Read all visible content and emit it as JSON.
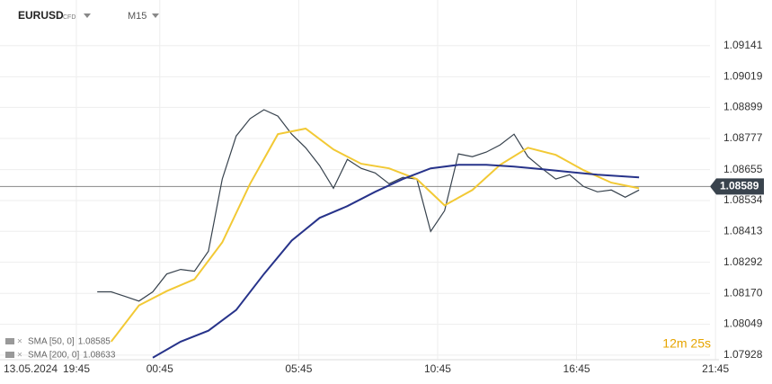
{
  "header": {
    "symbol": "EURUSD",
    "instrument_type": "CFD",
    "timeframe": "M15"
  },
  "chart_data": {
    "type": "line",
    "xlim": [
      -11,
      92.5
    ],
    "xticks": [
      {
        "value": 0,
        "label": "19:45"
      },
      {
        "value": 12,
        "label": "00:45"
      },
      {
        "value": 32,
        "label": "05:45"
      },
      {
        "value": 52,
        "label": "10:45"
      },
      {
        "value": 72,
        "label": "16:45"
      },
      {
        "value": 92,
        "label": "21:45"
      }
    ],
    "date_label": "13.05.2024",
    "ylim": [
      1.0791,
      1.0932
    ],
    "yticks": [
      {
        "value": 1.07928,
        "label": "1.07928"
      },
      {
        "value": 1.08049,
        "label": "1.08049"
      },
      {
        "value": 1.0817,
        "label": "1.08170"
      },
      {
        "value": 1.08292,
        "label": "1.08292"
      },
      {
        "value": 1.08413,
        "label": "1.08413"
      },
      {
        "value": 1.08534,
        "label": "1.08534"
      },
      {
        "value": 1.08655,
        "label": "1.08655"
      },
      {
        "value": 1.08777,
        "label": "1.08777"
      },
      {
        "value": 1.08899,
        "label": "1.08899"
      },
      {
        "value": 1.09019,
        "label": "1.09019"
      },
      {
        "value": 1.09141,
        "label": "1.09141"
      }
    ],
    "grid": true,
    "current_price": 1.08589,
    "countdown": "12m 25s",
    "series": [
      {
        "name": "EURUSD",
        "color": "#37424d",
        "x": [
          3,
          5,
          7,
          9,
          11,
          13,
          15,
          17,
          19,
          21,
          23,
          25,
          27,
          29,
          31,
          33,
          35,
          37,
          39,
          41,
          43,
          45,
          47,
          49,
          51,
          53,
          55,
          57,
          59,
          61,
          63,
          65,
          67,
          69,
          71,
          73,
          75,
          77,
          79,
          81
        ],
        "values": [
          1.08176,
          1.08176,
          1.08158,
          1.0814,
          1.08176,
          1.08246,
          1.08264,
          1.08257,
          1.08335,
          1.08618,
          1.08787,
          1.08855,
          1.0889,
          1.08865,
          1.08794,
          1.08741,
          1.08671,
          1.08582,
          1.08695,
          1.0866,
          1.08642,
          1.086,
          1.08625,
          1.08618,
          1.08413,
          1.08494,
          1.08717,
          1.08706,
          1.08724,
          1.08752,
          1.08794,
          1.08706,
          1.0866,
          1.08618,
          1.08635,
          1.08589,
          1.08568,
          1.08575,
          1.08547,
          1.08575
        ]
      },
      {
        "name": "SMA [50, 0]",
        "color": "#f2c935",
        "last_value": 1.08585,
        "x": [
          5,
          9,
          13,
          17,
          21,
          25,
          29,
          33,
          37,
          41,
          45,
          49,
          53,
          57,
          61,
          65,
          69,
          73,
          77,
          81
        ],
        "values": [
          1.07981,
          1.08123,
          1.08179,
          1.08225,
          1.0837,
          1.086,
          1.08794,
          1.08816,
          1.08734,
          1.08678,
          1.0866,
          1.08618,
          1.08515,
          1.08575,
          1.08674,
          1.08741,
          1.08713,
          1.08653,
          1.08604,
          1.08582
        ]
      },
      {
        "name": "SMA [200, 0]",
        "color": "#27338a",
        "last_value": 1.08633,
        "x": [
          11,
          15,
          19,
          23,
          27,
          31,
          35,
          39,
          43,
          47,
          51,
          55,
          59,
          63,
          67,
          71,
          75,
          79,
          81
        ],
        "values": [
          1.07918,
          1.07981,
          1.08024,
          1.08105,
          1.08246,
          1.08377,
          1.08466,
          1.08512,
          1.08568,
          1.08618,
          1.0866,
          1.08674,
          1.08674,
          1.08667,
          1.08657,
          1.08646,
          1.08635,
          1.08628,
          1.08625
        ]
      }
    ]
  }
}
